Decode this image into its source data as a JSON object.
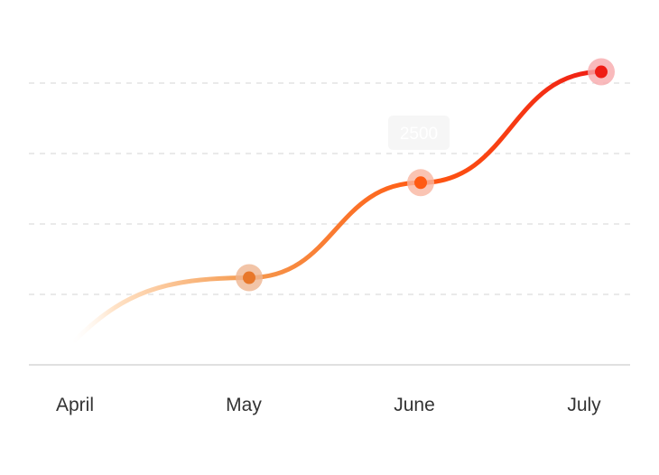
{
  "chart_data": {
    "type": "line",
    "categories": [
      "April",
      "May",
      "June",
      "July"
    ],
    "series": [
      {
        "values": [
          1000,
          1800,
          3000,
          4400
        ]
      }
    ],
    "ylim": [
      700,
      4600
    ],
    "grid": true,
    "tooltip": {
      "text": "2500"
    },
    "colors": {
      "start": "#ffe2c6",
      "mid1": "#f59a4f",
      "mid2": "#ff5a12",
      "end": "#ef1c14",
      "grid": "#dddddd",
      "axis": "#d6d6d6",
      "tooltip_bg": "#eeeeee"
    }
  }
}
